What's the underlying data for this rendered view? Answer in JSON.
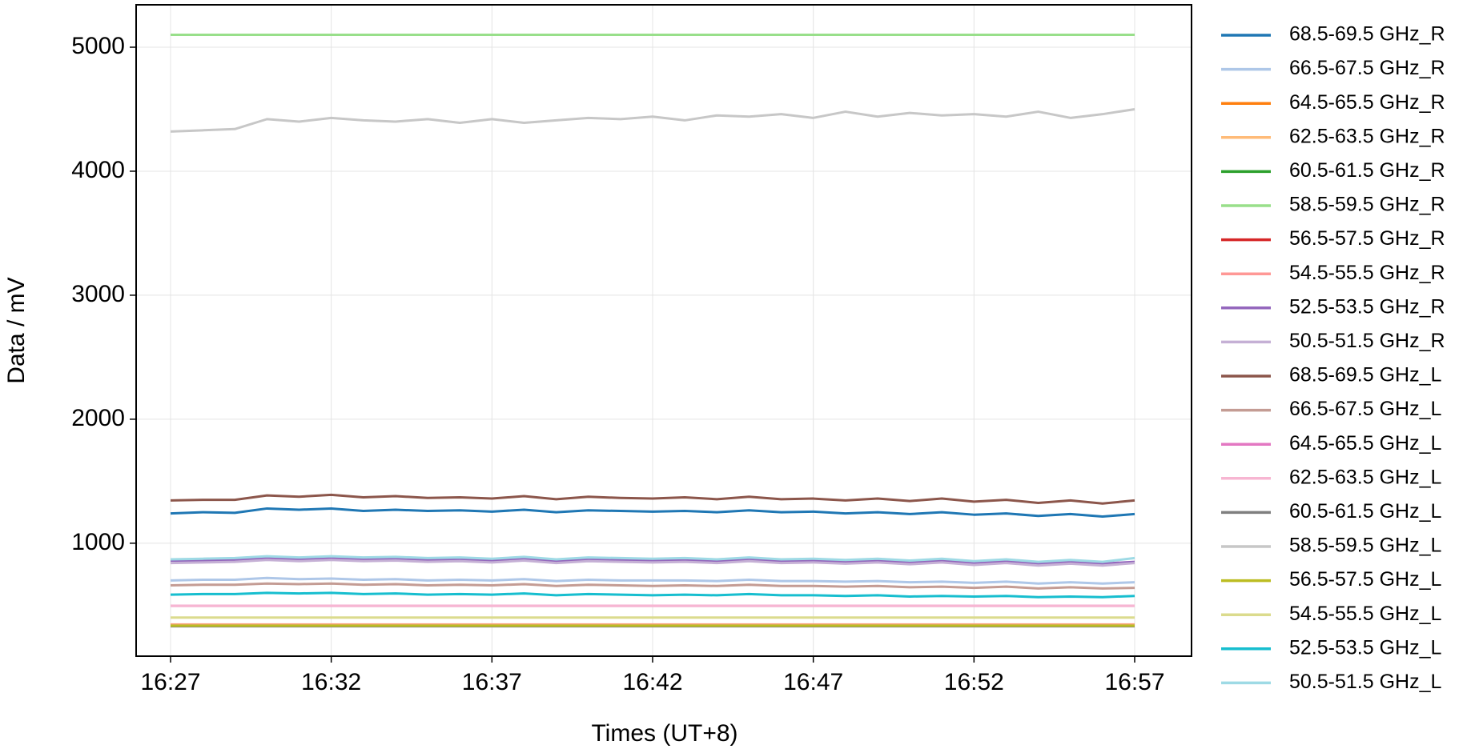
{
  "chart_data": {
    "type": "line",
    "x_label": "Times (UT+8)",
    "y_label": "Data / mV",
    "x": [
      "16:27",
      "16:28",
      "16:29",
      "16:30",
      "16:31",
      "16:32",
      "16:33",
      "16:34",
      "16:35",
      "16:36",
      "16:37",
      "16:38",
      "16:39",
      "16:40",
      "16:41",
      "16:42",
      "16:43",
      "16:44",
      "16:45",
      "16:46",
      "16:47",
      "16:48",
      "16:49",
      "16:50",
      "16:51",
      "16:52",
      "16:53",
      "16:54",
      "16:55",
      "16:56",
      "16:57"
    ],
    "xticks": [
      "16:27",
      "16:32",
      "16:37",
      "16:42",
      "16:47",
      "16:52",
      "16:57"
    ],
    "ylim": [
      89,
      5342
    ],
    "yticks": [
      1000,
      2000,
      3000,
      4000,
      5000
    ],
    "grid": true,
    "legend": "outside-right",
    "series": [
      {
        "name": "68.5-69.5 GHz_R",
        "color": "#1f77b4",
        "values": [
          1240,
          1250,
          1245,
          1280,
          1270,
          1280,
          1260,
          1270,
          1260,
          1265,
          1255,
          1270,
          1250,
          1265,
          1260,
          1255,
          1260,
          1250,
          1265,
          1250,
          1255,
          1240,
          1250,
          1235,
          1250,
          1230,
          1240,
          1220,
          1235,
          1215,
          1235
        ]
      },
      {
        "name": "66.5-67.5 GHz_R",
        "color": "#aec7e8",
        "values": [
          700,
          705,
          705,
          720,
          710,
          715,
          705,
          710,
          700,
          705,
          700,
          710,
          695,
          705,
          700,
          700,
          700,
          695,
          705,
          695,
          695,
          690,
          695,
          685,
          690,
          680,
          690,
          675,
          685,
          675,
          685
        ]
      },
      {
        "name": "64.5-65.5 GHz_R",
        "color": "#ff7f0e",
        "values": [
          340,
          340,
          340,
          340,
          340,
          340,
          340,
          340,
          340,
          340,
          340,
          340,
          340,
          340,
          340,
          340,
          340,
          340,
          340,
          340,
          340,
          340,
          340,
          340,
          340,
          340,
          340,
          340,
          340,
          340,
          340
        ]
      },
      {
        "name": "62.5-63.5 GHz_R",
        "color": "#ffbb78",
        "values": [
          345,
          345,
          345,
          345,
          345,
          345,
          345,
          345,
          345,
          345,
          345,
          345,
          345,
          345,
          345,
          345,
          345,
          345,
          345,
          345,
          345,
          345,
          345,
          345,
          345,
          345,
          345,
          345,
          345,
          345,
          345
        ]
      },
      {
        "name": "60.5-61.5 GHz_R",
        "color": "#2ca02c",
        "values": [
          5100,
          5100,
          5100,
          5100,
          5100,
          5100,
          5100,
          5100,
          5100,
          5100,
          5100,
          5100,
          5100,
          5100,
          5100,
          5100,
          5100,
          5100,
          5100,
          5100,
          5100,
          5100,
          5100,
          5100,
          5100,
          5100,
          5100,
          5100,
          5100,
          5100,
          5100
        ]
      },
      {
        "name": "58.5-59.5 GHz_R",
        "color": "#98df8a",
        "values": [
          5100,
          5100,
          5100,
          5100,
          5100,
          5100,
          5100,
          5100,
          5100,
          5100,
          5100,
          5100,
          5100,
          5100,
          5100,
          5100,
          5100,
          5100,
          5100,
          5100,
          5100,
          5100,
          5100,
          5100,
          5100,
          5100,
          5100,
          5100,
          5100,
          5100,
          5100
        ]
      },
      {
        "name": "56.5-57.5 GHz_R",
        "color": "#d62728",
        "values": [
          340,
          340,
          340,
          340,
          340,
          340,
          340,
          340,
          340,
          340,
          340,
          340,
          340,
          340,
          340,
          340,
          340,
          340,
          340,
          340,
          340,
          340,
          340,
          340,
          340,
          340,
          340,
          340,
          340,
          340,
          340
        ]
      },
      {
        "name": "54.5-55.5 GHz_R",
        "color": "#ff9896",
        "values": [
          340,
          340,
          340,
          340,
          340,
          340,
          340,
          340,
          340,
          340,
          340,
          340,
          340,
          340,
          340,
          340,
          340,
          340,
          340,
          340,
          340,
          340,
          340,
          340,
          340,
          340,
          340,
          340,
          340,
          340,
          340
        ]
      },
      {
        "name": "52.5-53.5 GHz_R",
        "color": "#9467bd",
        "values": [
          860,
          860,
          865,
          880,
          870,
          880,
          870,
          875,
          865,
          870,
          860,
          875,
          855,
          870,
          865,
          860,
          865,
          855,
          870,
          855,
          860,
          850,
          860,
          845,
          860,
          840,
          855,
          835,
          850,
          835,
          850
        ]
      },
      {
        "name": "50.5-51.5 GHz_R",
        "color": "#c5b0d5",
        "values": [
          840,
          845,
          850,
          865,
          855,
          865,
          855,
          860,
          850,
          855,
          845,
          860,
          840,
          855,
          850,
          845,
          850,
          840,
          855,
          840,
          845,
          835,
          845,
          830,
          845,
          825,
          840,
          820,
          835,
          820,
          840
        ]
      },
      {
        "name": "68.5-69.5 GHz_L",
        "color": "#8c564b",
        "values": [
          1345,
          1350,
          1350,
          1385,
          1375,
          1390,
          1370,
          1380,
          1365,
          1370,
          1360,
          1380,
          1355,
          1375,
          1365,
          1360,
          1370,
          1355,
          1375,
          1355,
          1360,
          1345,
          1360,
          1340,
          1360,
          1335,
          1350,
          1325,
          1345,
          1320,
          1345
        ]
      },
      {
        "name": "66.5-67.5 GHz_L",
        "color": "#c49c94",
        "values": [
          660,
          665,
          665,
          675,
          670,
          675,
          665,
          670,
          660,
          665,
          660,
          670,
          655,
          665,
          660,
          655,
          660,
          655,
          665,
          655,
          655,
          650,
          655,
          645,
          650,
          640,
          650,
          635,
          645,
          635,
          640
        ]
      },
      {
        "name": "64.5-65.5 GHz_L",
        "color": "#e377c2",
        "values": [
          495,
          495,
          495,
          495,
          495,
          495,
          495,
          495,
          495,
          495,
          495,
          495,
          495,
          495,
          495,
          495,
          495,
          495,
          495,
          495,
          495,
          495,
          495,
          495,
          495,
          495,
          495,
          495,
          495,
          495,
          495
        ]
      },
      {
        "name": "62.5-63.5 GHz_L",
        "color": "#f7b6d2",
        "values": [
          495,
          495,
          495,
          495,
          495,
          495,
          495,
          495,
          495,
          495,
          495,
          495,
          495,
          495,
          495,
          495,
          495,
          495,
          495,
          495,
          495,
          495,
          495,
          495,
          495,
          495,
          495,
          495,
          495,
          495,
          495
        ]
      },
      {
        "name": "60.5-61.5 GHz_L",
        "color": "#7f7f7f",
        "values": [
          330,
          330,
          330,
          330,
          330,
          330,
          330,
          330,
          330,
          330,
          330,
          330,
          330,
          330,
          330,
          330,
          330,
          330,
          330,
          330,
          330,
          330,
          330,
          330,
          330,
          330,
          330,
          330,
          330,
          330,
          330
        ]
      },
      {
        "name": "58.5-59.5 GHz_L",
        "color": "#c7c7c7",
        "values": [
          4320,
          4330,
          4340,
          4420,
          4400,
          4430,
          4410,
          4400,
          4420,
          4390,
          4420,
          4390,
          4410,
          4430,
          4420,
          4440,
          4410,
          4450,
          4440,
          4460,
          4430,
          4480,
          4440,
          4470,
          4450,
          4460,
          4440,
          4480,
          4430,
          4460,
          4500
        ]
      },
      {
        "name": "56.5-57.5 GHz_L",
        "color": "#bcbd22",
        "values": [
          335,
          335,
          335,
          335,
          335,
          335,
          335,
          335,
          335,
          335,
          335,
          335,
          335,
          335,
          335,
          335,
          335,
          335,
          335,
          335,
          335,
          335,
          335,
          335,
          335,
          335,
          335,
          335,
          335,
          335,
          335
        ]
      },
      {
        "name": "54.5-55.5 GHz_L",
        "color": "#dbdb8d",
        "values": [
          400,
          400,
          400,
          400,
          400,
          400,
          400,
          400,
          400,
          400,
          400,
          400,
          400,
          400,
          400,
          400,
          400,
          400,
          400,
          400,
          400,
          400,
          400,
          400,
          400,
          400,
          400,
          400,
          400,
          400,
          400
        ]
      },
      {
        "name": "52.5-53.5 GHz_L",
        "color": "#17becf",
        "values": [
          585,
          590,
          590,
          600,
          595,
          600,
          590,
          595,
          585,
          590,
          585,
          595,
          580,
          590,
          585,
          580,
          585,
          580,
          590,
          580,
          580,
          575,
          580,
          570,
          575,
          570,
          575,
          565,
          570,
          565,
          575
        ]
      },
      {
        "name": "50.5-51.5 GHz_L",
        "color": "#9edae5",
        "values": [
          870,
          875,
          880,
          895,
          885,
          895,
          885,
          890,
          880,
          885,
          875,
          890,
          870,
          885,
          880,
          875,
          880,
          870,
          885,
          870,
          875,
          865,
          875,
          860,
          875,
          855,
          870,
          850,
          865,
          850,
          880
        ]
      }
    ]
  }
}
